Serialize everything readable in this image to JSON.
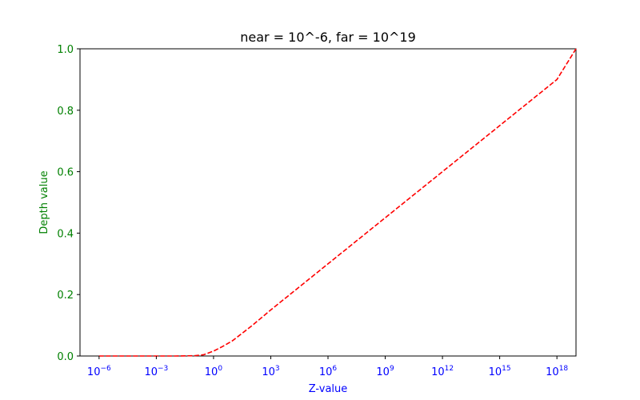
{
  "chart_data": {
    "type": "line",
    "title": "near = 10^-6, far = 10^19",
    "xlabel": "Z-value",
    "ylabel": "Depth value",
    "xscale": "log",
    "xlim": [
      1e-07,
      1e+19
    ],
    "ylim": [
      0.0,
      1.0
    ],
    "x_ticks": [
      {
        "base": "10",
        "exp": "−6",
        "value": 1e-06
      },
      {
        "base": "10",
        "exp": "−3",
        "value": 0.001
      },
      {
        "base": "10",
        "exp": "0",
        "value": 1
      },
      {
        "base": "10",
        "exp": "3",
        "value": 1000.0
      },
      {
        "base": "10",
        "exp": "6",
        "value": 1000000.0
      },
      {
        "base": "10",
        "exp": "9",
        "value": 1000000000.0
      },
      {
        "base": "10",
        "exp": "12",
        "value": 1000000000000.0
      },
      {
        "base": "10",
        "exp": "15",
        "value": 1000000000000000.0
      },
      {
        "base": "10",
        "exp": "18",
        "value": 1e+18
      }
    ],
    "y_ticks": [
      {
        "label": "0.0",
        "value": 0.0
      },
      {
        "label": "0.2",
        "value": 0.2
      },
      {
        "label": "0.4",
        "value": 0.4
      },
      {
        "label": "0.6",
        "value": 0.6
      },
      {
        "label": "0.8",
        "value": 0.8
      },
      {
        "label": "1.0",
        "value": 1.0
      }
    ],
    "grid": false,
    "series": [
      {
        "color": "#ff0000",
        "linestyle": "dashed",
        "x": [
          1e-06,
          1e-05,
          0.0001,
          0.001,
          0.01,
          0.1,
          0.3,
          1,
          3,
          10,
          100,
          1000.0,
          10000.0,
          100000.0,
          1000000.0,
          10000000.0,
          100000000.0,
          1000000000.0,
          10000000000.0,
          100000000000.0,
          1000000000000.0,
          10000000000000.0,
          100000000000000.0,
          1000000000000000.0,
          1e+16,
          1e+17,
          1e+18,
          1e+19
        ],
        "y": [
          0.0,
          0.0,
          0.0,
          0.0,
          0.0,
          0.001,
          0.004,
          0.016,
          0.031,
          0.05,
          0.098,
          0.15,
          0.2,
          0.25,
          0.3,
          0.35,
          0.4,
          0.45,
          0.5,
          0.55,
          0.6,
          0.65,
          0.7,
          0.75,
          0.8,
          0.85,
          0.9,
          1.0
        ]
      }
    ],
    "colors": {
      "y_axis_text": "#008000",
      "x_axis_text": "#0000ff",
      "title_text": "#000000"
    }
  }
}
